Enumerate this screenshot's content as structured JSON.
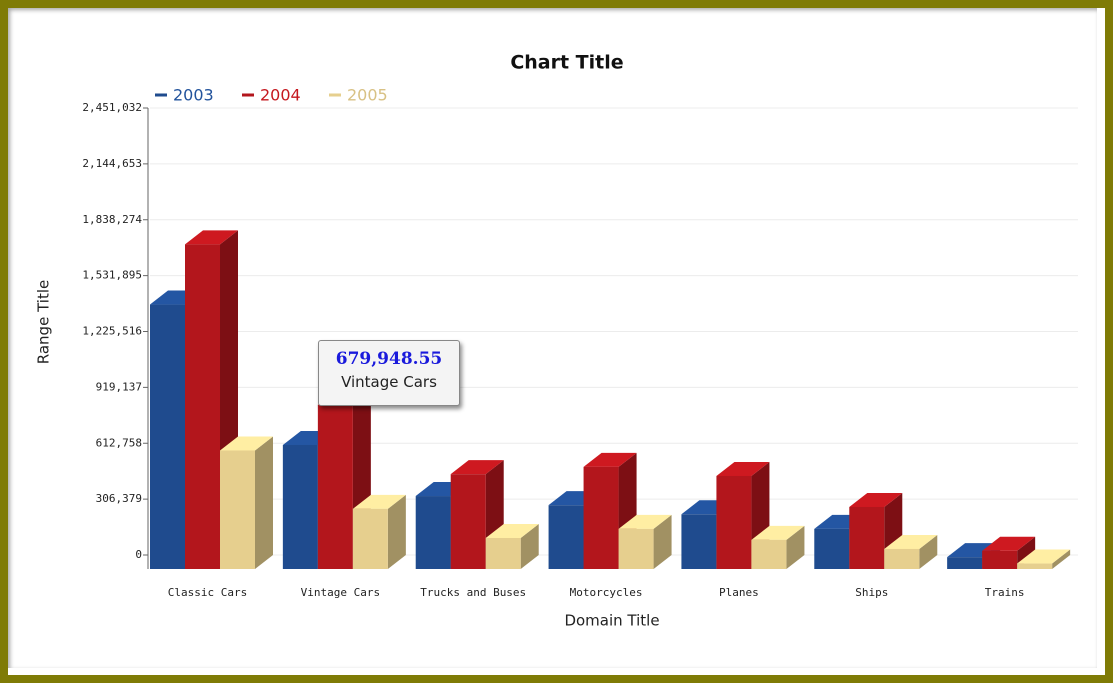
{
  "chart_data": {
    "type": "bar3d",
    "title": "Chart Title",
    "x_label": "Domain Title",
    "y_label": "Range Title",
    "categories": [
      "Classic Cars",
      "Vintage Cars",
      "Trucks and Buses",
      "Motorcycles",
      "Planes",
      "Ships",
      "Trains"
    ],
    "series": [
      {
        "name": "2003",
        "color": "#1f4b8e",
        "values": [
          1450000,
          679948.55,
          400000,
          350000,
          300000,
          220000,
          65000
        ]
      },
      {
        "name": "2004",
        "color": "#b3161c",
        "values": [
          1780000,
          900000,
          520000,
          560000,
          510000,
          340000,
          100000
        ]
      },
      {
        "name": "2005",
        "color": "#e6cf8e",
        "values": [
          650000,
          330000,
          170000,
          220000,
          160000,
          110000,
          30000
        ]
      }
    ],
    "ylim": [
      0,
      2451032
    ],
    "yticks": [
      0,
      {
        "value": 306379,
        "label": "306,379"
      },
      {
        "value": 612758,
        "label": "612,758"
      },
      {
        "value": 919137,
        "label": "919,137"
      },
      {
        "value": 1225516,
        "label": "1,225,516"
      },
      {
        "value": 1531895,
        "label": "1,531,895"
      },
      {
        "value": 1838274,
        "label": "1,838,274"
      },
      {
        "value": 2144653,
        "label": "2,144,653"
      },
      {
        "value": 2451032,
        "label": "2,451,032"
      }
    ],
    "grid": true,
    "legend": "top-left",
    "tooltip": {
      "value_label": "679,948.55",
      "category": "Vintage Cars"
    }
  }
}
